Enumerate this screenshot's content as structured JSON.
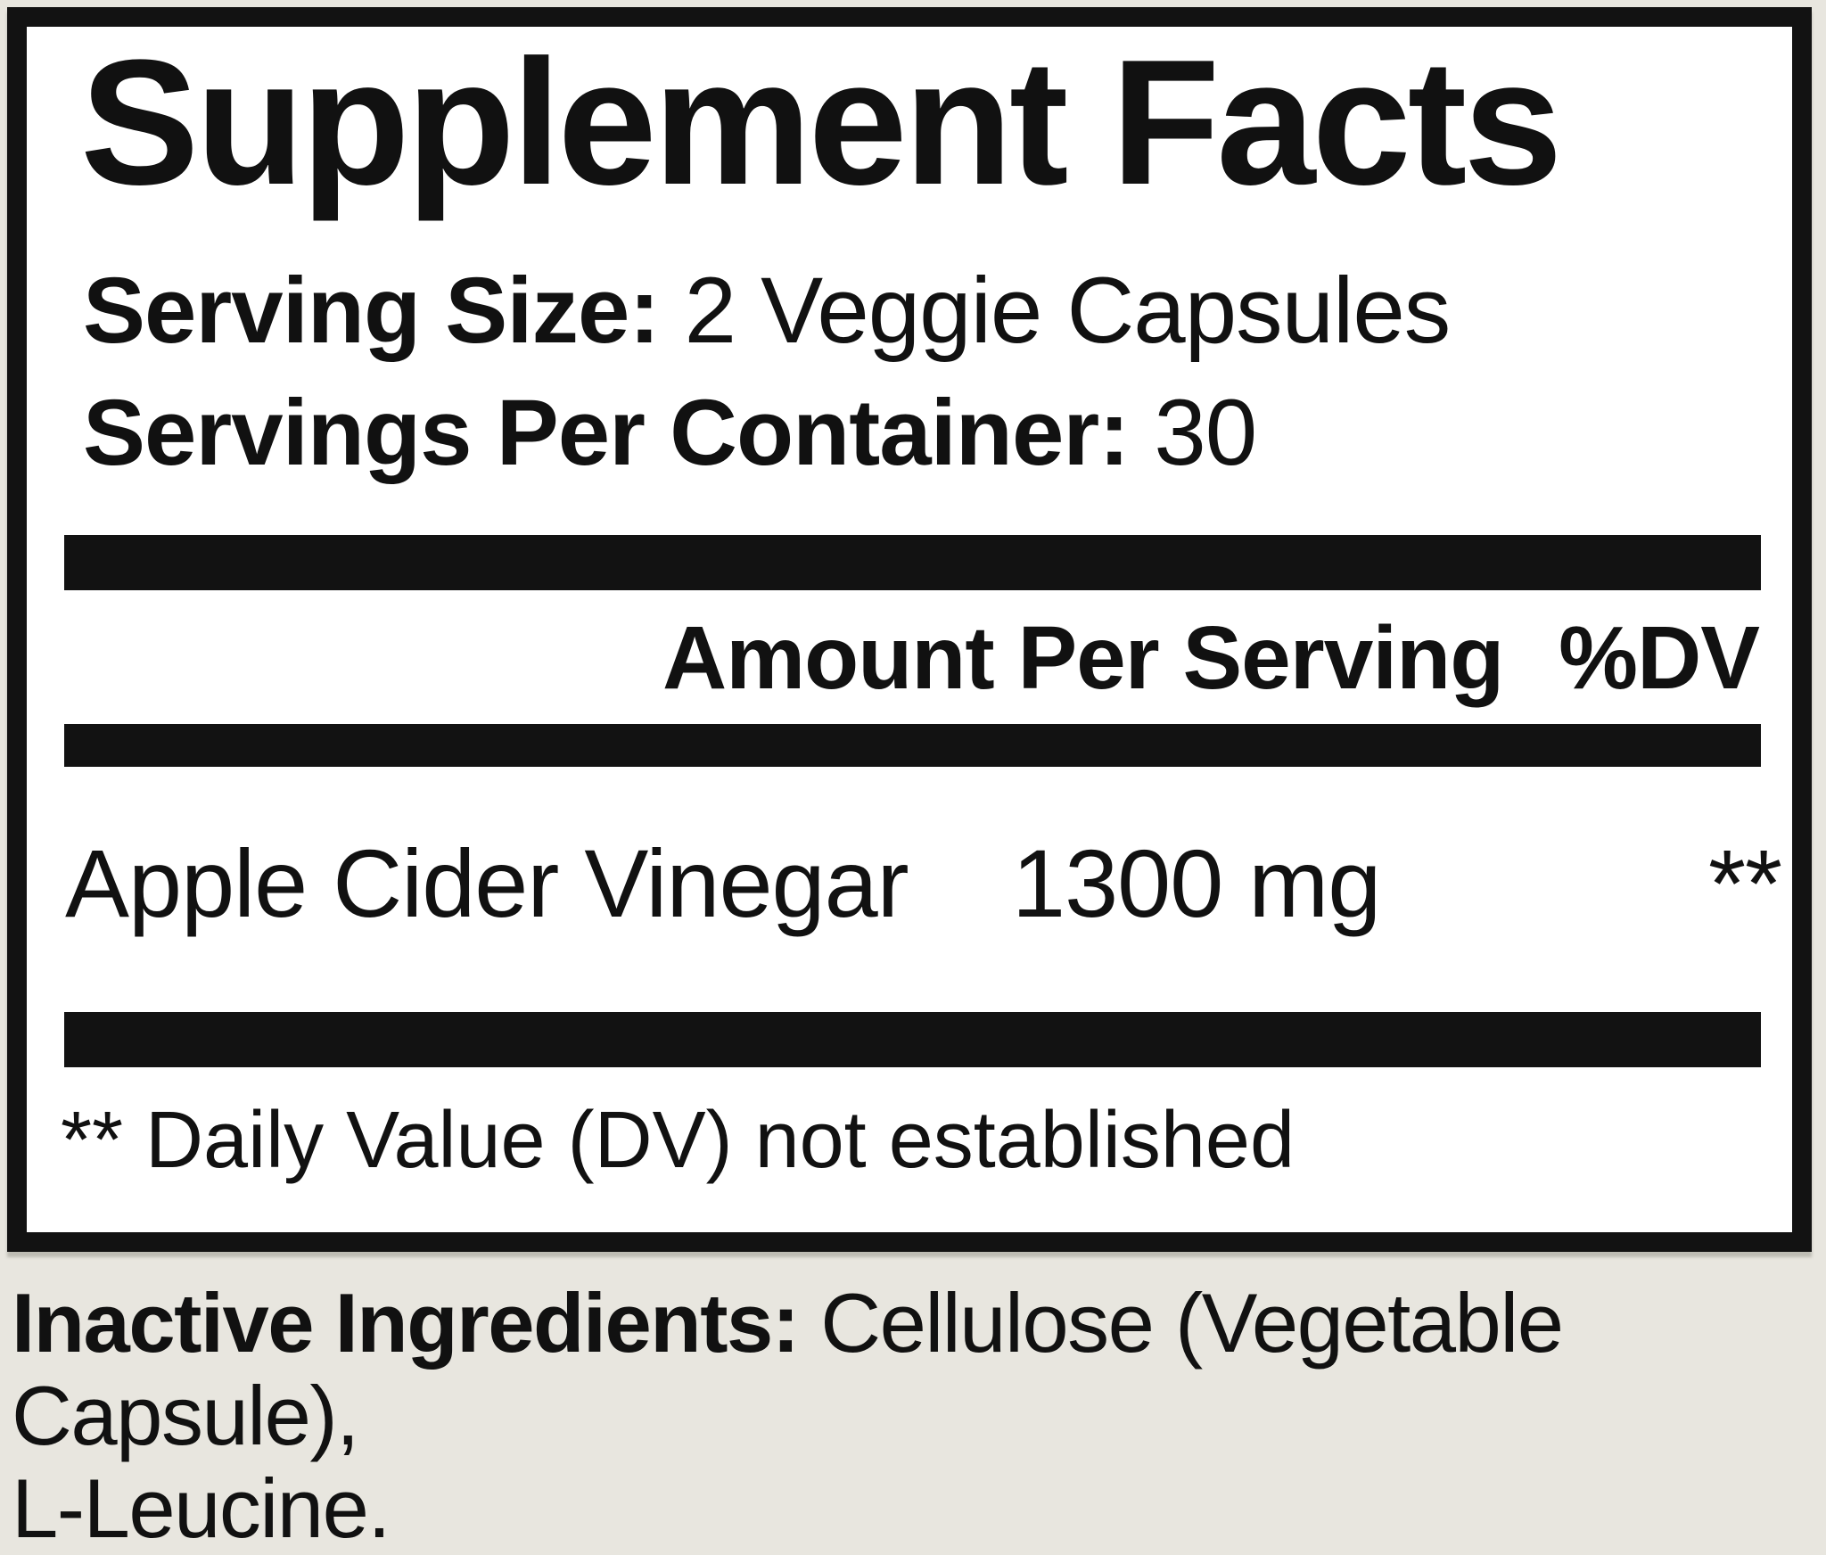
{
  "colors": {
    "page_background": "#e8e6df",
    "label_background": "#ffffff",
    "ink": "#111111"
  },
  "label": {
    "title": "Supplement Facts",
    "serving_size_label": "Serving Size:",
    "serving_size_value": "2 Veggie Capsules",
    "servings_per_container_label": "Servings Per Container:",
    "servings_per_container_value": "30",
    "table": {
      "amount_header": "Amount Per Serving",
      "dv_header": "%DV",
      "rows": [
        {
          "name": "Apple Cider Vinegar",
          "amount": "1300 mg",
          "dv": "**"
        }
      ]
    },
    "footnote": "** Daily Value (DV) not established"
  },
  "inactive_ingredients": {
    "label": "Inactive Ingredients:",
    "line1_rest": " Cellulose (Vegetable Capsule),",
    "line2": "L-Leucine."
  }
}
